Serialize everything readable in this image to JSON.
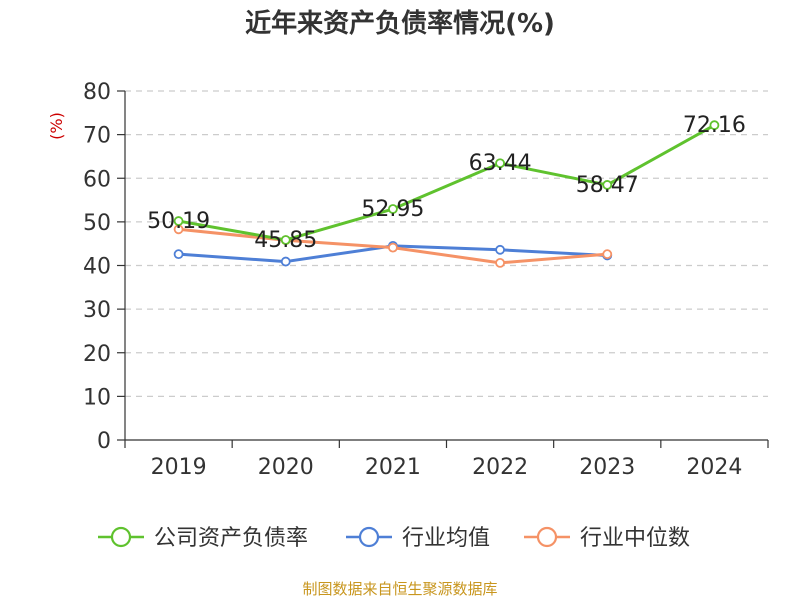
{
  "chart_data": {
    "type": "line",
    "title": "近年来资产负债率情况(%)",
    "ylabel": "(%)",
    "xlabel": "",
    "categories": [
      "2019",
      "2020",
      "2021",
      "2022",
      "2023",
      "2024"
    ],
    "ylim": [
      0,
      80
    ],
    "yticks": [
      0,
      10,
      20,
      30,
      40,
      50,
      60,
      70,
      80
    ],
    "grid": true,
    "legend_position": "bottom",
    "series": [
      {
        "name": "公司资产负债率",
        "color": "#5fc22e",
        "values": [
          50.19,
          45.85,
          52.95,
          63.44,
          58.47,
          72.16
        ],
        "labels": [
          "50.19",
          "45.85",
          "52.95",
          "63.44",
          "58.47",
          "72.16"
        ]
      },
      {
        "name": "行业均值",
        "color": "#4e7fd6",
        "values": [
          42.6,
          40.9,
          44.5,
          43.6,
          42.3,
          null
        ]
      },
      {
        "name": "行业中位数",
        "color": "#f59266",
        "values": [
          48.3,
          45.8,
          44.1,
          40.6,
          42.6,
          null
        ]
      }
    ]
  },
  "footer": {
    "source": "制图数据来自恒生聚源数据库"
  }
}
